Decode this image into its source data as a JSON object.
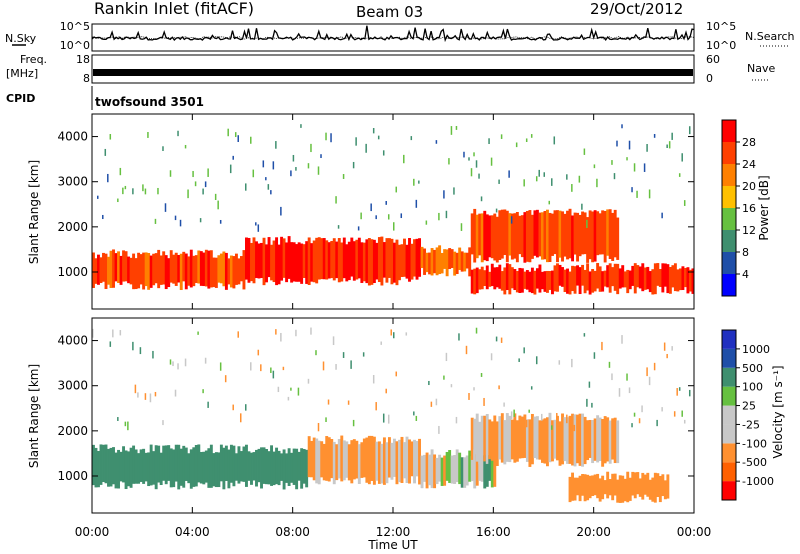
{
  "header": {
    "station": "Rankin Inlet (fitACF)",
    "beam": "Beam 03",
    "date": "29/Oct/2012"
  },
  "top_panels": {
    "nsky_label": "N.Sky",
    "nsearch_label": "N.Search",
    "noise_ticks": [
      "10^5",
      "10^0"
    ],
    "freq_label": "Freq.",
    "freq_unit": "[MHz]",
    "freq_ticks": [
      "18",
      "8"
    ],
    "nave_label": "Nave",
    "nave_ticks": [
      "60",
      "0"
    ],
    "cpid_label": "CPID",
    "cpid_value": "twofsound 3501"
  },
  "x_axis": {
    "label": "Time UT",
    "ticks": [
      "00:00",
      "04:00",
      "08:00",
      "12:00",
      "16:00",
      "20:00",
      "00:00"
    ]
  },
  "y_axis": {
    "label": "Slant Range [km]",
    "ticks": [
      "1000",
      "2000",
      "3000",
      "4000"
    ]
  },
  "colors": {
    "power": [
      "#0000ff",
      "#1f4fa8",
      "#3f8f6f",
      "#66c040",
      "#ffc000",
      "#ff8000",
      "#ff4000",
      "#ff0000"
    ],
    "velocity": [
      "#ff0000",
      "#ff6000",
      "#ff9030",
      "#c8c8c8",
      "#c8c8c8",
      "#66c040",
      "#3f8f6f",
      "#1f4fa8",
      "#2030c0"
    ],
    "ground_scatter": "#c0c0c0"
  },
  "colorbars": {
    "power_label": "Power [dB]",
    "power_ticks": [
      "4",
      "8",
      "12",
      "16",
      "20",
      "24",
      "28"
    ],
    "velocity_label": "Velocity [m s⁻¹]",
    "velocity_ticks": [
      "1000",
      "500",
      "100",
      "25",
      "-25",
      "-100",
      "-500",
      "-1000"
    ]
  },
  "chart_data": [
    {
      "type": "heatmap",
      "panel": "power",
      "x_range": [
        "00:00",
        "24:00"
      ],
      "y_range_km": [
        180,
        4500
      ],
      "color_scale_db": [
        0,
        30
      ],
      "dominant_echo_bands": [
        {
          "t_start_h": 0.0,
          "t_end_h": 6.0,
          "range_km": [
            700,
            1400
          ],
          "power_db": 26
        },
        {
          "t_start_h": 6.0,
          "t_end_h": 13.0,
          "range_km": [
            800,
            1700
          ],
          "power_db": 28
        },
        {
          "t_start_h": 13.0,
          "t_end_h": 15.0,
          "range_km": [
            1000,
            1500
          ],
          "power_db": 24
        },
        {
          "t_start_h": 15.0,
          "t_end_h": 21.0,
          "range_km": [
            1300,
            2300
          ],
          "power_db": 26
        },
        {
          "t_start_h": 15.0,
          "t_end_h": 24.0,
          "range_km": [
            600,
            1100
          ],
          "power_db": 28
        }
      ]
    },
    {
      "type": "heatmap",
      "panel": "velocity",
      "x_range": [
        "00:00",
        "24:00"
      ],
      "y_range_km": [
        180,
        4500
      ],
      "color_scale_ms": [
        -1000,
        1000
      ],
      "dominant_echo_bands": [
        {
          "t_start_h": 0.0,
          "t_end_h": 8.5,
          "range_km": [
            800,
            1600
          ],
          "velocity_ms": 300
        },
        {
          "t_start_h": 8.5,
          "t_end_h": 13.0,
          "range_km": [
            900,
            1800
          ],
          "velocity_ms": -150
        },
        {
          "t_start_h": 13.0,
          "t_end_h": 16.0,
          "range_km": [
            800,
            1500
          ],
          "velocity_ms": 0
        },
        {
          "t_start_h": 15.0,
          "t_end_h": 21.0,
          "range_km": [
            1300,
            2300
          ],
          "velocity_ms": -150
        },
        {
          "t_start_h": 19.0,
          "t_end_h": 23.0,
          "range_km": [
            500,
            1000
          ],
          "velocity_ms": -300
        }
      ]
    }
  ]
}
